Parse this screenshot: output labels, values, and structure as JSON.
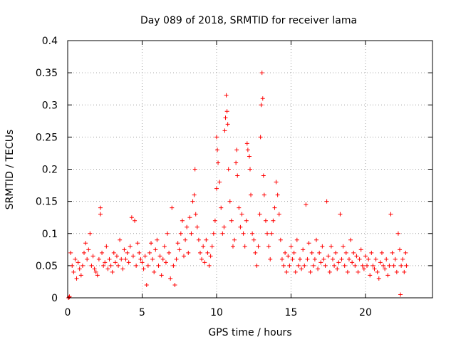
{
  "chart_data": {
    "type": "scatter",
    "title": "Day 089 of 2018, SRMTID for receiver lama",
    "xlabel": "GPS time / hours",
    "ylabel": "SRMTID / TECUs",
    "xlim": [
      0,
      24.5
    ],
    "ylim": [
      0,
      0.4
    ],
    "x_ticks": [
      0,
      5,
      10,
      15,
      20
    ],
    "x_tick_labels": [
      "0",
      "5",
      "10",
      "15",
      "20"
    ],
    "y_ticks": [
      0,
      0.05,
      0.1,
      0.15,
      0.2,
      0.25,
      0.3,
      0.35,
      0.4
    ],
    "y_tick_labels": [
      "0",
      "0.05",
      "0.1",
      "0.15",
      "0.2",
      "0.25",
      "0.3",
      "0.35",
      "0.4"
    ],
    "grid": true,
    "marker": "plus",
    "series": [
      {
        "name": "SRMTID",
        "color": "#ff0000",
        "points": [
          [
            0.05,
            0.0
          ],
          [
            0.1,
            0.001
          ],
          [
            0.12,
            0.002
          ],
          [
            0.2,
            0.07
          ],
          [
            0.3,
            0.05
          ],
          [
            0.4,
            0.04
          ],
          [
            0.5,
            0.06
          ],
          [
            0.6,
            0.03
          ],
          [
            0.7,
            0.055
          ],
          [
            0.8,
            0.045
          ],
          [
            0.9,
            0.035
          ],
          [
            1.0,
            0.05
          ],
          [
            1.1,
            0.07
          ],
          [
            1.2,
            0.085
          ],
          [
            1.3,
            0.06
          ],
          [
            1.4,
            0.075
          ],
          [
            1.5,
            0.1
          ],
          [
            1.6,
            0.05
          ],
          [
            1.7,
            0.065
          ],
          [
            1.8,
            0.045
          ],
          [
            1.9,
            0.04
          ],
          [
            2.0,
            0.035
          ],
          [
            2.1,
            0.06
          ],
          [
            2.2,
            0.13
          ],
          [
            2.2,
            0.14
          ],
          [
            2.3,
            0.07
          ],
          [
            2.4,
            0.05
          ],
          [
            2.5,
            0.055
          ],
          [
            2.6,
            0.08
          ],
          [
            2.7,
            0.045
          ],
          [
            2.8,
            0.06
          ],
          [
            2.9,
            0.05
          ],
          [
            3.0,
            0.04
          ],
          [
            3.1,
            0.07
          ],
          [
            3.2,
            0.055
          ],
          [
            3.3,
            0.065
          ],
          [
            3.4,
            0.05
          ],
          [
            3.5,
            0.09
          ],
          [
            3.6,
            0.06
          ],
          [
            3.7,
            0.045
          ],
          [
            3.8,
            0.075
          ],
          [
            3.9,
            0.06
          ],
          [
            4.0,
            0.07
          ],
          [
            4.1,
            0.055
          ],
          [
            4.2,
            0.08
          ],
          [
            4.3,
            0.125
          ],
          [
            4.4,
            0.065
          ],
          [
            4.5,
            0.12
          ],
          [
            4.6,
            0.05
          ],
          [
            4.7,
            0.085
          ],
          [
            4.8,
            0.07
          ],
          [
            4.9,
            0.06
          ],
          [
            5.0,
            0.055
          ],
          [
            5.1,
            0.045
          ],
          [
            5.2,
            0.065
          ],
          [
            5.3,
            0.02
          ],
          [
            5.4,
            0.05
          ],
          [
            5.5,
            0.07
          ],
          [
            5.6,
            0.085
          ],
          [
            5.7,
            0.06
          ],
          [
            5.8,
            0.04
          ],
          [
            5.9,
            0.075
          ],
          [
            6.0,
            0.09
          ],
          [
            6.1,
            0.05
          ],
          [
            6.2,
            0.065
          ],
          [
            6.3,
            0.035
          ],
          [
            6.4,
            0.06
          ],
          [
            6.5,
            0.08
          ],
          [
            6.6,
            0.055
          ],
          [
            6.7,
            0.1
          ],
          [
            6.8,
            0.07
          ],
          [
            6.9,
            0.03
          ],
          [
            7.0,
            0.14
          ],
          [
            7.1,
            0.05
          ],
          [
            7.2,
            0.02
          ],
          [
            7.3,
            0.06
          ],
          [
            7.4,
            0.085
          ],
          [
            7.5,
            0.075
          ],
          [
            7.6,
            0.1
          ],
          [
            7.7,
            0.12
          ],
          [
            7.8,
            0.065
          ],
          [
            7.9,
            0.09
          ],
          [
            8.0,
            0.11
          ],
          [
            8.1,
            0.07
          ],
          [
            8.2,
            0.125
          ],
          [
            8.3,
            0.1
          ],
          [
            8.4,
            0.15
          ],
          [
            8.5,
            0.16
          ],
          [
            8.55,
            0.2
          ],
          [
            8.6,
            0.13
          ],
          [
            8.7,
            0.11
          ],
          [
            8.8,
            0.09
          ],
          [
            8.9,
            0.07
          ],
          [
            9.0,
            0.06
          ],
          [
            9.1,
            0.08
          ],
          [
            9.2,
            0.055
          ],
          [
            9.3,
            0.09
          ],
          [
            9.4,
            0.07
          ],
          [
            9.5,
            0.05
          ],
          [
            9.6,
            0.065
          ],
          [
            9.7,
            0.08
          ],
          [
            9.8,
            0.1
          ],
          [
            9.9,
            0.12
          ],
          [
            10.0,
            0.17
          ],
          [
            10.0,
            0.25
          ],
          [
            10.05,
            0.23
          ],
          [
            10.1,
            0.21
          ],
          [
            10.2,
            0.18
          ],
          [
            10.3,
            0.14
          ],
          [
            10.4,
            0.1
          ],
          [
            10.5,
            0.11
          ],
          [
            10.55,
            0.26
          ],
          [
            10.6,
            0.28
          ],
          [
            10.65,
            0.315
          ],
          [
            10.7,
            0.29
          ],
          [
            10.75,
            0.27
          ],
          [
            10.8,
            0.2
          ],
          [
            10.9,
            0.15
          ],
          [
            11.0,
            0.12
          ],
          [
            11.1,
            0.08
          ],
          [
            11.2,
            0.09
          ],
          [
            11.3,
            0.21
          ],
          [
            11.35,
            0.23
          ],
          [
            11.4,
            0.19
          ],
          [
            11.5,
            0.14
          ],
          [
            11.6,
            0.11
          ],
          [
            11.7,
            0.13
          ],
          [
            11.8,
            0.1
          ],
          [
            11.9,
            0.08
          ],
          [
            12.0,
            0.12
          ],
          [
            12.05,
            0.24
          ],
          [
            12.1,
            0.23
          ],
          [
            12.2,
            0.22
          ],
          [
            12.25,
            0.2
          ],
          [
            12.3,
            0.16
          ],
          [
            12.4,
            0.1
          ],
          [
            12.5,
            0.09
          ],
          [
            12.6,
            0.07
          ],
          [
            12.7,
            0.05
          ],
          [
            12.8,
            0.08
          ],
          [
            12.9,
            0.13
          ],
          [
            12.95,
            0.25
          ],
          [
            13.0,
            0.3
          ],
          [
            13.05,
            0.35
          ],
          [
            13.1,
            0.31
          ],
          [
            13.15,
            0.19
          ],
          [
            13.2,
            0.16
          ],
          [
            13.3,
            0.12
          ],
          [
            13.4,
            0.1
          ],
          [
            13.5,
            0.08
          ],
          [
            13.6,
            0.06
          ],
          [
            13.7,
            0.1
          ],
          [
            13.8,
            0.12
          ],
          [
            13.9,
            0.14
          ],
          [
            14.0,
            0.18
          ],
          [
            14.1,
            0.16
          ],
          [
            14.2,
            0.13
          ],
          [
            14.3,
            0.09
          ],
          [
            14.4,
            0.06
          ],
          [
            14.5,
            0.05
          ],
          [
            14.6,
            0.07
          ],
          [
            14.7,
            0.04
          ],
          [
            14.8,
            0.065
          ],
          [
            14.9,
            0.05
          ],
          [
            15.0,
            0.08
          ],
          [
            15.1,
            0.06
          ],
          [
            15.2,
            0.07
          ],
          [
            15.3,
            0.04
          ],
          [
            15.4,
            0.09
          ],
          [
            15.5,
            0.05
          ],
          [
            15.6,
            0.06
          ],
          [
            15.7,
            0.045
          ],
          [
            15.8,
            0.075
          ],
          [
            15.9,
            0.05
          ],
          [
            16.0,
            0.145
          ],
          [
            16.1,
            0.06
          ],
          [
            16.2,
            0.085
          ],
          [
            16.3,
            0.04
          ],
          [
            16.4,
            0.07
          ],
          [
            16.5,
            0.05
          ],
          [
            16.6,
            0.06
          ],
          [
            16.7,
            0.09
          ],
          [
            16.8,
            0.045
          ],
          [
            16.9,
            0.07
          ],
          [
            17.0,
            0.055
          ],
          [
            17.1,
            0.08
          ],
          [
            17.2,
            0.06
          ],
          [
            17.3,
            0.05
          ],
          [
            17.4,
            0.15
          ],
          [
            17.5,
            0.065
          ],
          [
            17.6,
            0.04
          ],
          [
            17.7,
            0.08
          ],
          [
            17.8,
            0.06
          ],
          [
            17.9,
            0.05
          ],
          [
            18.0,
            0.07
          ],
          [
            18.1,
            0.045
          ],
          [
            18.2,
            0.055
          ],
          [
            18.3,
            0.13
          ],
          [
            18.4,
            0.06
          ],
          [
            18.5,
            0.08
          ],
          [
            18.6,
            0.05
          ],
          [
            18.7,
            0.07
          ],
          [
            18.8,
            0.04
          ],
          [
            18.9,
            0.06
          ],
          [
            19.0,
            0.09
          ],
          [
            19.1,
            0.055
          ],
          [
            19.2,
            0.07
          ],
          [
            19.3,
            0.05
          ],
          [
            19.4,
            0.065
          ],
          [
            19.5,
            0.04
          ],
          [
            19.6,
            0.06
          ],
          [
            19.7,
            0.075
          ],
          [
            19.8,
            0.05
          ],
          [
            19.9,
            0.045
          ],
          [
            20.0,
            0.065
          ],
          [
            20.1,
            0.05
          ],
          [
            20.2,
            0.06
          ],
          [
            20.3,
            0.035
          ],
          [
            20.4,
            0.07
          ],
          [
            20.5,
            0.05
          ],
          [
            20.6,
            0.045
          ],
          [
            20.7,
            0.06
          ],
          [
            20.8,
            0.04
          ],
          [
            20.9,
            0.03
          ],
          [
            21.0,
            0.055
          ],
          [
            21.1,
            0.07
          ],
          [
            21.2,
            0.05
          ],
          [
            21.3,
            0.045
          ],
          [
            21.4,
            0.06
          ],
          [
            21.5,
            0.035
          ],
          [
            21.6,
            0.05
          ],
          [
            21.7,
            0.13
          ],
          [
            21.8,
            0.07
          ],
          [
            21.9,
            0.05
          ],
          [
            22.0,
            0.06
          ],
          [
            22.1,
            0.04
          ],
          [
            22.2,
            0.1
          ],
          [
            22.3,
            0.075
          ],
          [
            22.35,
            0.005
          ],
          [
            22.4,
            0.05
          ],
          [
            22.5,
            0.06
          ],
          [
            22.6,
            0.04
          ],
          [
            22.7,
            0.07
          ],
          [
            22.75,
            0.05
          ]
        ]
      }
    ]
  }
}
